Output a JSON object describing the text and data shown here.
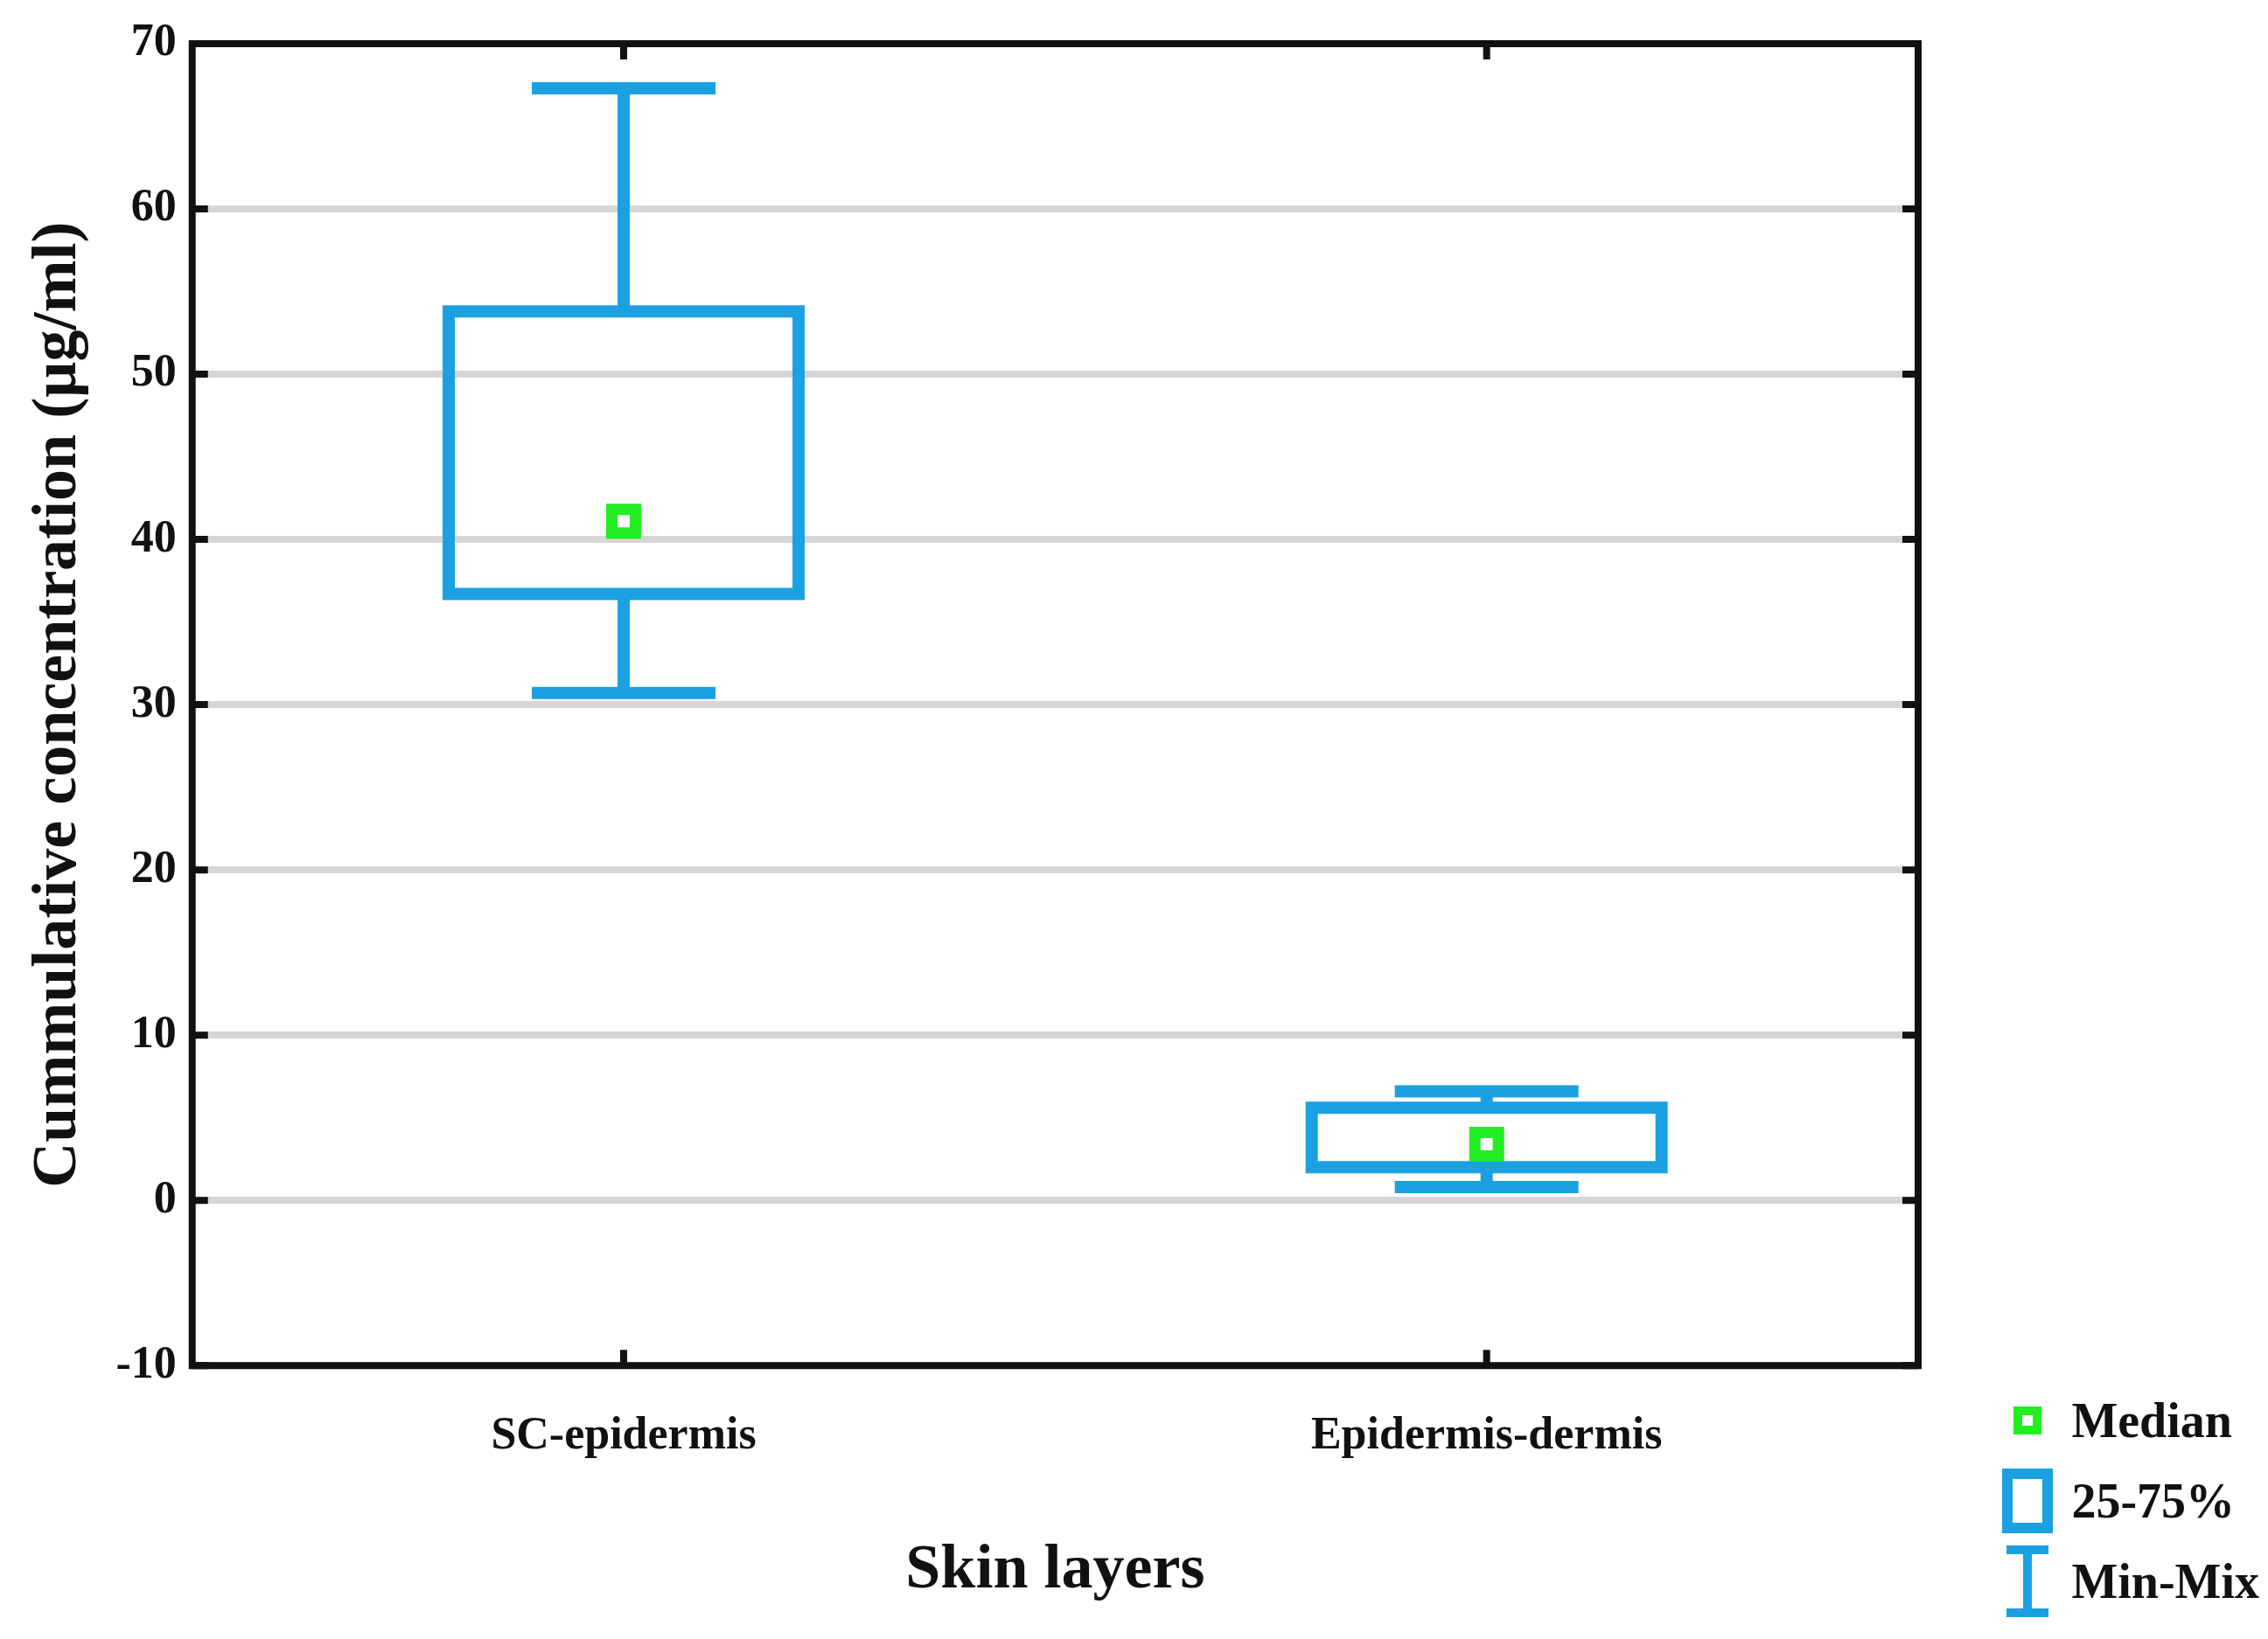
{
  "chart_data": {
    "type": "box",
    "xlabel": "Skin layers",
    "ylabel": "Cummulative concentration (µg/ml)",
    "categories": [
      "SC-epidermis",
      "Epidermis-dermis"
    ],
    "boxes": [
      {
        "low": 30.7,
        "q1": 36.7,
        "median": 41.1,
        "q3": 53.8,
        "high": 67.3
      },
      {
        "low": 0.8,
        "q1": 2.0,
        "median": 3.4,
        "q3": 5.6,
        "high": 6.6
      }
    ],
    "color": "#1ba1e2",
    "ylim": [
      -10,
      70
    ],
    "yticks": [
      -10,
      0,
      10,
      20,
      30,
      40,
      50,
      60,
      70
    ],
    "grid": "y",
    "annotations": [
      "Median",
      "25-75%",
      "Min-Mix"
    ]
  }
}
